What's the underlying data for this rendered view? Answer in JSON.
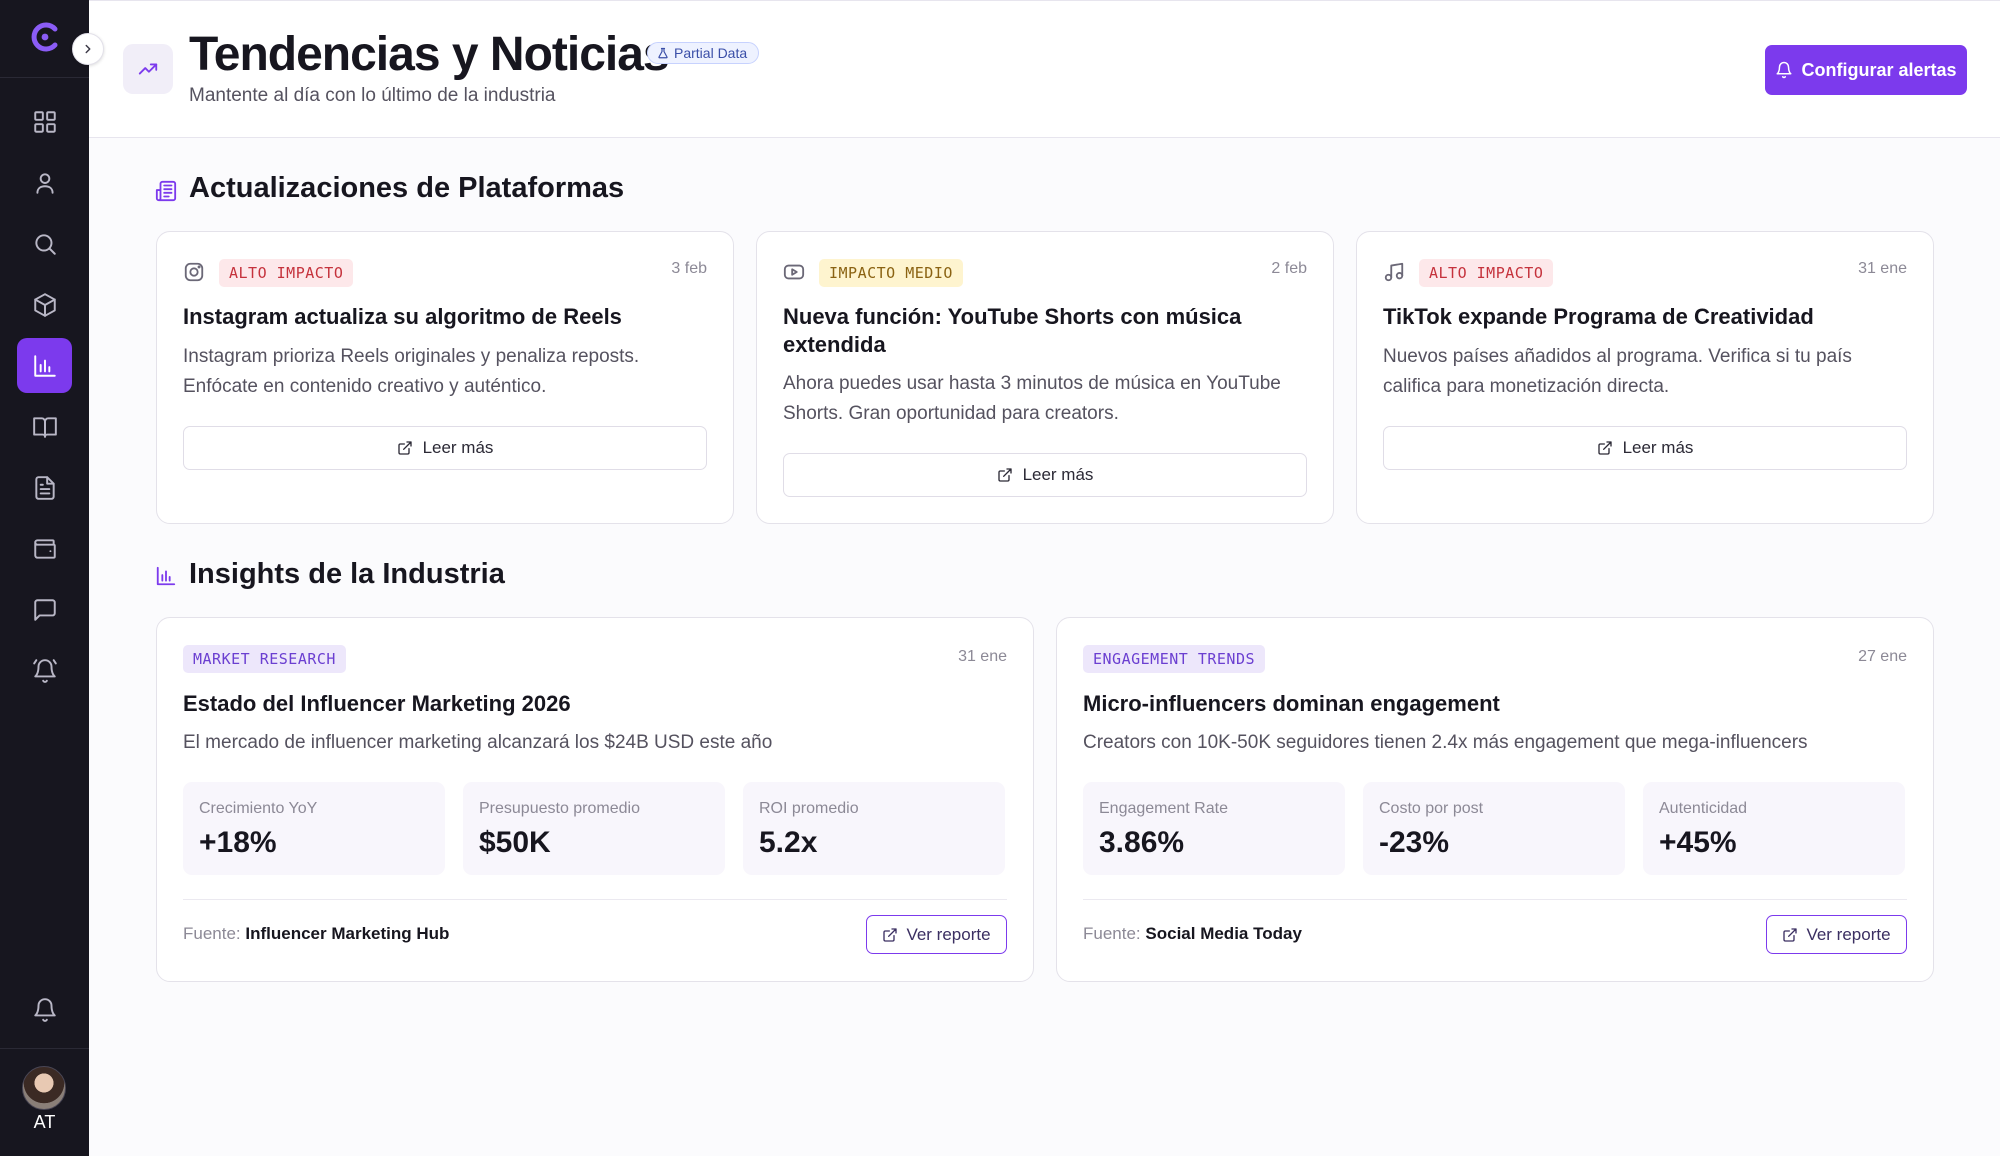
{
  "header": {
    "title": "Tendencias y Noticias",
    "badge": "Partial Data",
    "subtitle": "Mantente al día con lo último de la industria",
    "alerts_button": "Configurar alertas"
  },
  "sidebar": {
    "items": [
      {
        "icon": "dashboard-icon"
      },
      {
        "icon": "user-icon"
      },
      {
        "icon": "search-icon"
      },
      {
        "icon": "package-icon"
      },
      {
        "icon": "bar-chart-icon",
        "active": true
      },
      {
        "icon": "book-icon"
      },
      {
        "icon": "document-icon"
      },
      {
        "icon": "wallet-icon"
      },
      {
        "icon": "chat-icon"
      },
      {
        "icon": "alarm-icon"
      }
    ],
    "notifications_icon": "bell-icon",
    "user_initials": "AT"
  },
  "platform_updates": {
    "title": "Actualizaciones de Plataformas",
    "cards": [
      {
        "platform_icon": "instagram-icon",
        "tag": "ALTO IMPACTO",
        "date": "3 feb",
        "title": "Instagram actualiza su algoritmo de Reels",
        "body": "Instagram prioriza Reels originales y penaliza reposts. Enfócate en contenido creativo y auténtico.",
        "button": "Leer más"
      },
      {
        "platform_icon": "youtube-icon",
        "tag": "IMPACTO MEDIO",
        "date": "2 feb",
        "title": "Nueva función: YouTube Shorts con música extendida",
        "body": "Ahora puedes usar hasta 3 minutos de música en YouTube Shorts. Gran oportunidad para creators.",
        "button": "Leer más"
      },
      {
        "platform_icon": "tiktok-icon",
        "tag": "ALTO IMPACTO",
        "date": "31 ene",
        "title": "TikTok expande Programa de Creatividad",
        "body": "Nuevos países añadidos al programa. Verifica si tu país califica para monetización directa.",
        "button": "Leer más"
      }
    ]
  },
  "insights": {
    "title": "Insights de la Industria",
    "cards": [
      {
        "tag": "MARKET RESEARCH",
        "date": "31 ene",
        "title": "Estado del Influencer Marketing 2026",
        "body": "El mercado de influencer marketing alcanzará los $24B USD este año",
        "stats": [
          {
            "label": "Crecimiento YoY",
            "value": "+18%"
          },
          {
            "label": "Presupuesto promedio",
            "value": "$50K"
          },
          {
            "label": "ROI promedio",
            "value": "5.2x"
          }
        ],
        "source_label": "Fuente:",
        "source": "Influencer Marketing Hub",
        "button": "Ver reporte"
      },
      {
        "tag": "ENGAGEMENT TRENDS",
        "date": "27 ene",
        "title": "Micro-influencers dominan engagement",
        "body": "Creators con 10K-50K seguidores tienen 2.4x más engagement que mega-influencers",
        "stats": [
          {
            "label": "Engagement Rate",
            "value": "3.86%"
          },
          {
            "label": "Costo por post",
            "value": "-23%"
          },
          {
            "label": "Autenticidad",
            "value": "+45%"
          }
        ],
        "source_label": "Fuente:",
        "source": "Social Media Today",
        "button": "Ver reporte"
      }
    ]
  }
}
